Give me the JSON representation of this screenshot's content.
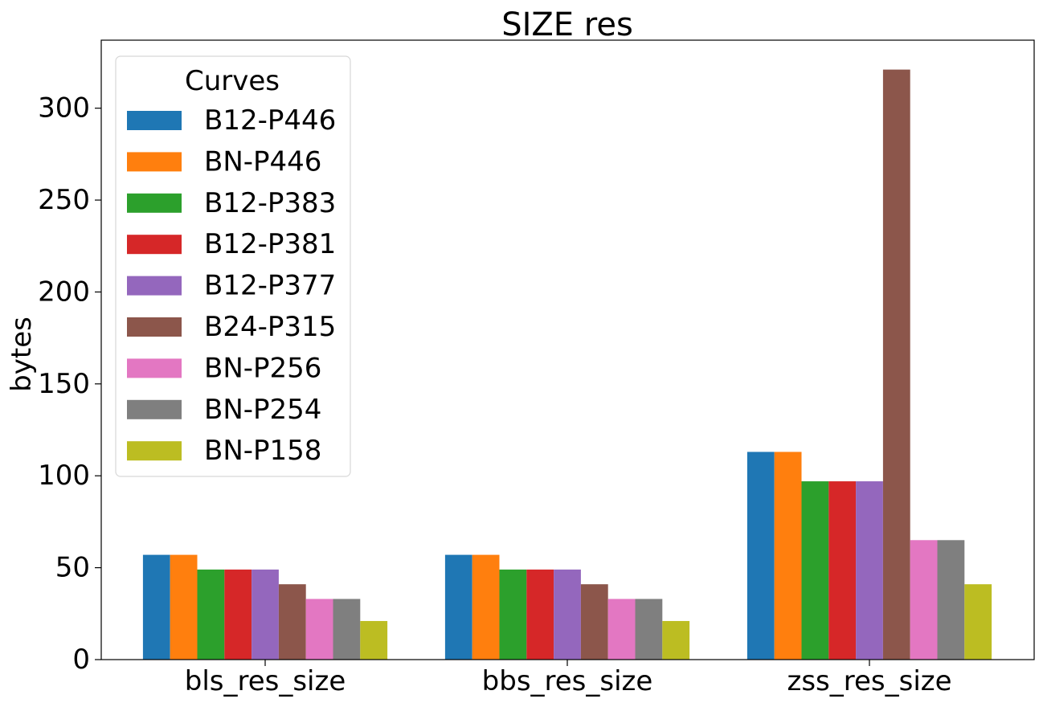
{
  "chart_data": {
    "type": "bar",
    "title": "SIZE res",
    "xlabel": "",
    "ylabel": "bytes",
    "categories": [
      "bls_res_size",
      "bbs_res_size",
      "zss_res_size"
    ],
    "ylim": [
      0,
      337
    ],
    "yticks": [
      0,
      50,
      100,
      150,
      200,
      250,
      300
    ],
    "legend": {
      "title": "Curves",
      "placement": "upper-left"
    },
    "grid": false,
    "series": [
      {
        "name": "B12-P446",
        "color": "#1f77b4",
        "values": [
          57,
          57,
          113
        ]
      },
      {
        "name": "BN-P446",
        "color": "#ff7f0e",
        "values": [
          57,
          57,
          113
        ]
      },
      {
        "name": "B12-P383",
        "color": "#2ca02c",
        "values": [
          49,
          49,
          97
        ]
      },
      {
        "name": "B12-P381",
        "color": "#d62728",
        "values": [
          49,
          49,
          97
        ]
      },
      {
        "name": "B12-P377",
        "color": "#9467bd",
        "values": [
          49,
          49,
          97
        ]
      },
      {
        "name": "B24-P315",
        "color": "#8c564b",
        "values": [
          41,
          41,
          321
        ]
      },
      {
        "name": "BN-P256",
        "color": "#e377c2",
        "values": [
          33,
          33,
          65
        ]
      },
      {
        "name": "BN-P254",
        "color": "#7f7f7f",
        "values": [
          33,
          33,
          65
        ]
      },
      {
        "name": "BN-P158",
        "color": "#bcbd22",
        "values": [
          21,
          21,
          41
        ]
      }
    ]
  }
}
